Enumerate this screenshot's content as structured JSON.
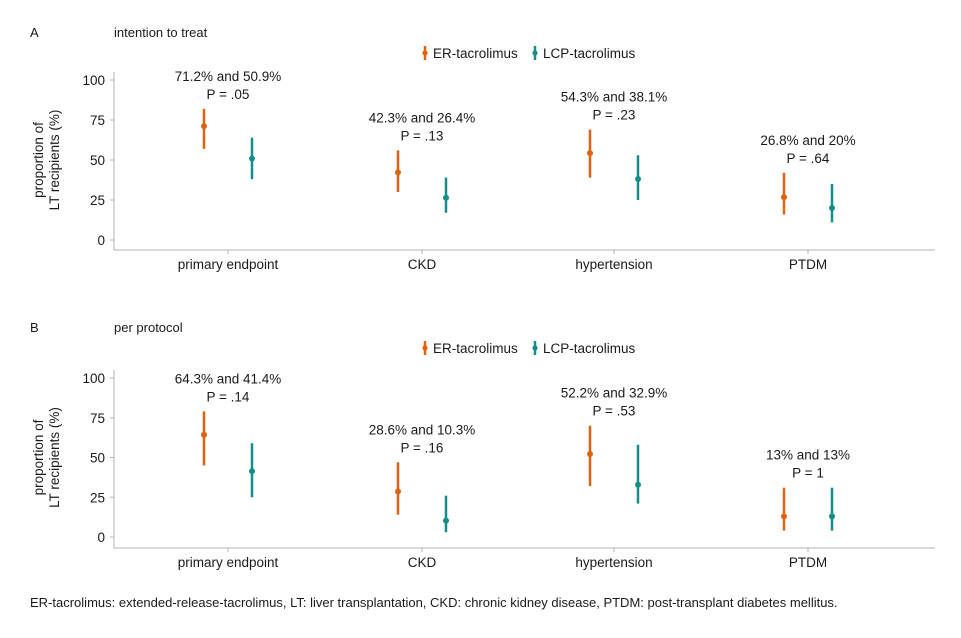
{
  "legend": {
    "series": [
      {
        "name": "ER-tacrolimus",
        "color": "#e0620f"
      },
      {
        "name": "LCP-tacrolimus",
        "color": "#138f8a"
      }
    ]
  },
  "caption": "ER-tacrolimus: extended-release-tacrolimus, LT: liver transplantation, CKD: chronic kidney disease, PTDM: post-transplant diabetes mellitus.",
  "chart_data": [
    {
      "type": "scatter",
      "panel_letter": "A",
      "title": "intention to treat",
      "ylabel": "proportion of\nLT recipients (%)",
      "ylim": [
        0,
        100
      ],
      "yticks": [
        0,
        25,
        50,
        75,
        100
      ],
      "categories": [
        "primary endpoint",
        "CKD",
        "hypertension",
        "PTDM"
      ],
      "series": [
        {
          "name": "ER-tacrolimus",
          "color": "#e0620f",
          "values": [
            71.2,
            42.3,
            54.3,
            26.8
          ],
          "lower": [
            57,
            30,
            39,
            16
          ],
          "upper": [
            82,
            56,
            69,
            42
          ]
        },
        {
          "name": "LCP-tacrolimus",
          "color": "#138f8a",
          "values": [
            50.9,
            26.4,
            38.1,
            20
          ],
          "lower": [
            38,
            17,
            25,
            11
          ],
          "upper": [
            64,
            39,
            53,
            35
          ]
        }
      ],
      "annotations": [
        {
          "line1": "71.2% and 50.9%",
          "line2": "P = .05"
        },
        {
          "line1": "42.3% and 26.4%",
          "line2": "P = .13"
        },
        {
          "line1": "54.3% and 38.1%",
          "line2": "P = .23"
        },
        {
          "line1": "26.8% and 20%",
          "line2": "P = .64"
        }
      ],
      "legend_position": "top-center",
      "grid": false
    },
    {
      "type": "scatter",
      "panel_letter": "B",
      "title": "per protocol",
      "ylabel": "proportion of\nLT recipients (%)",
      "ylim": [
        0,
        100
      ],
      "yticks": [
        0,
        25,
        50,
        75,
        100
      ],
      "categories": [
        "primary endpoint",
        "CKD",
        "hypertension",
        "PTDM"
      ],
      "series": [
        {
          "name": "ER-tacrolimus",
          "color": "#e0620f",
          "values": [
            64.3,
            28.6,
            52.2,
            13
          ],
          "lower": [
            45,
            14,
            32,
            4
          ],
          "upper": [
            79,
            47,
            70,
            31
          ]
        },
        {
          "name": "LCP-tacrolimus",
          "color": "#138f8a",
          "values": [
            41.4,
            10.3,
            32.9,
            13
          ],
          "lower": [
            25,
            3,
            21,
            4
          ],
          "upper": [
            59,
            26,
            58,
            31
          ]
        }
      ],
      "annotations": [
        {
          "line1": "64.3% and 41.4%",
          "line2": "P = .14"
        },
        {
          "line1": "28.6% and 10.3%",
          "line2": "P = .16"
        },
        {
          "line1": "52.2% and 32.9%",
          "line2": "P = .53"
        },
        {
          "line1": "13% and 13%",
          "line2": "P = 1"
        }
      ],
      "legend_position": "top-center",
      "grid": false
    }
  ]
}
